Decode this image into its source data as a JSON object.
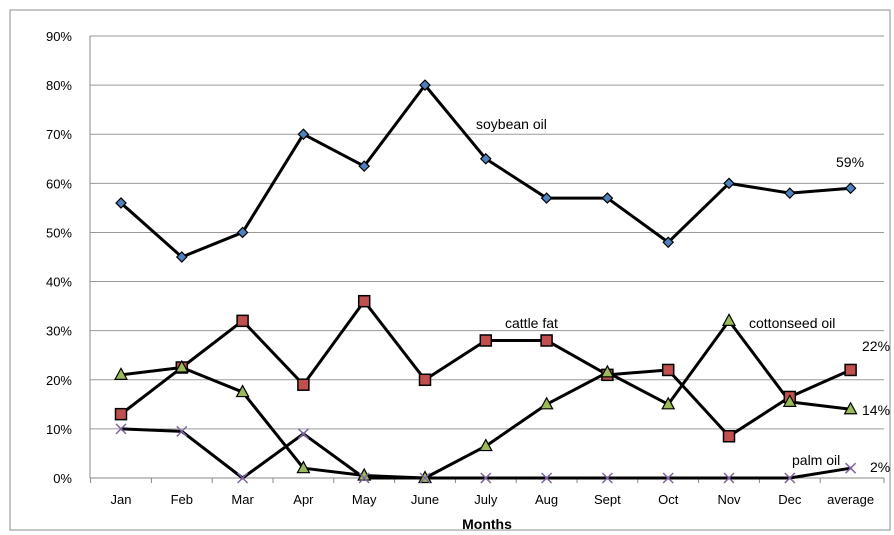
{
  "chart_data": {
    "type": "line",
    "title": "",
    "xlabel": "Months",
    "ylabel": "",
    "ylim": [
      0,
      90
    ],
    "y_tick_labels": [
      "0%",
      "10%",
      "20%",
      "30%",
      "40%",
      "50%",
      "60%",
      "70%",
      "80%",
      "90%"
    ],
    "grid": "horizontal",
    "categories": [
      "Jan",
      "Feb",
      "Mar",
      "Apr",
      "May",
      "June",
      "July",
      "Aug",
      "Sept",
      "Oct",
      "Nov",
      "Dec",
      "average"
    ],
    "series": [
      {
        "name": "soybean oil",
        "marker": "diamond",
        "marker_color": "#4f81bd",
        "values": [
          56,
          45,
          50,
          70,
          63.5,
          80,
          65,
          57,
          57,
          48,
          60,
          58,
          59
        ],
        "end_label": "59%"
      },
      {
        "name": "cattle fat",
        "marker": "square",
        "marker_color": "#c0504d",
        "values": [
          13,
          22.5,
          32,
          19,
          36,
          20,
          28,
          28,
          21,
          22,
          8.5,
          16.5,
          22
        ],
        "end_label": "22%"
      },
      {
        "name": "cottonseed oil",
        "marker": "triangle",
        "marker_color": "#9bbb59",
        "values": [
          21,
          22.5,
          17.5,
          2,
          0.5,
          0,
          6.5,
          15,
          21.5,
          15,
          32,
          15.5,
          14
        ],
        "end_label": "14%"
      },
      {
        "name": "palm oil",
        "marker": "x",
        "marker_color": "#8064a2",
        "values": [
          10,
          9.5,
          0,
          9,
          0,
          0,
          0,
          0,
          0,
          0,
          0,
          0,
          2
        ],
        "end_label": "2%"
      }
    ]
  }
}
